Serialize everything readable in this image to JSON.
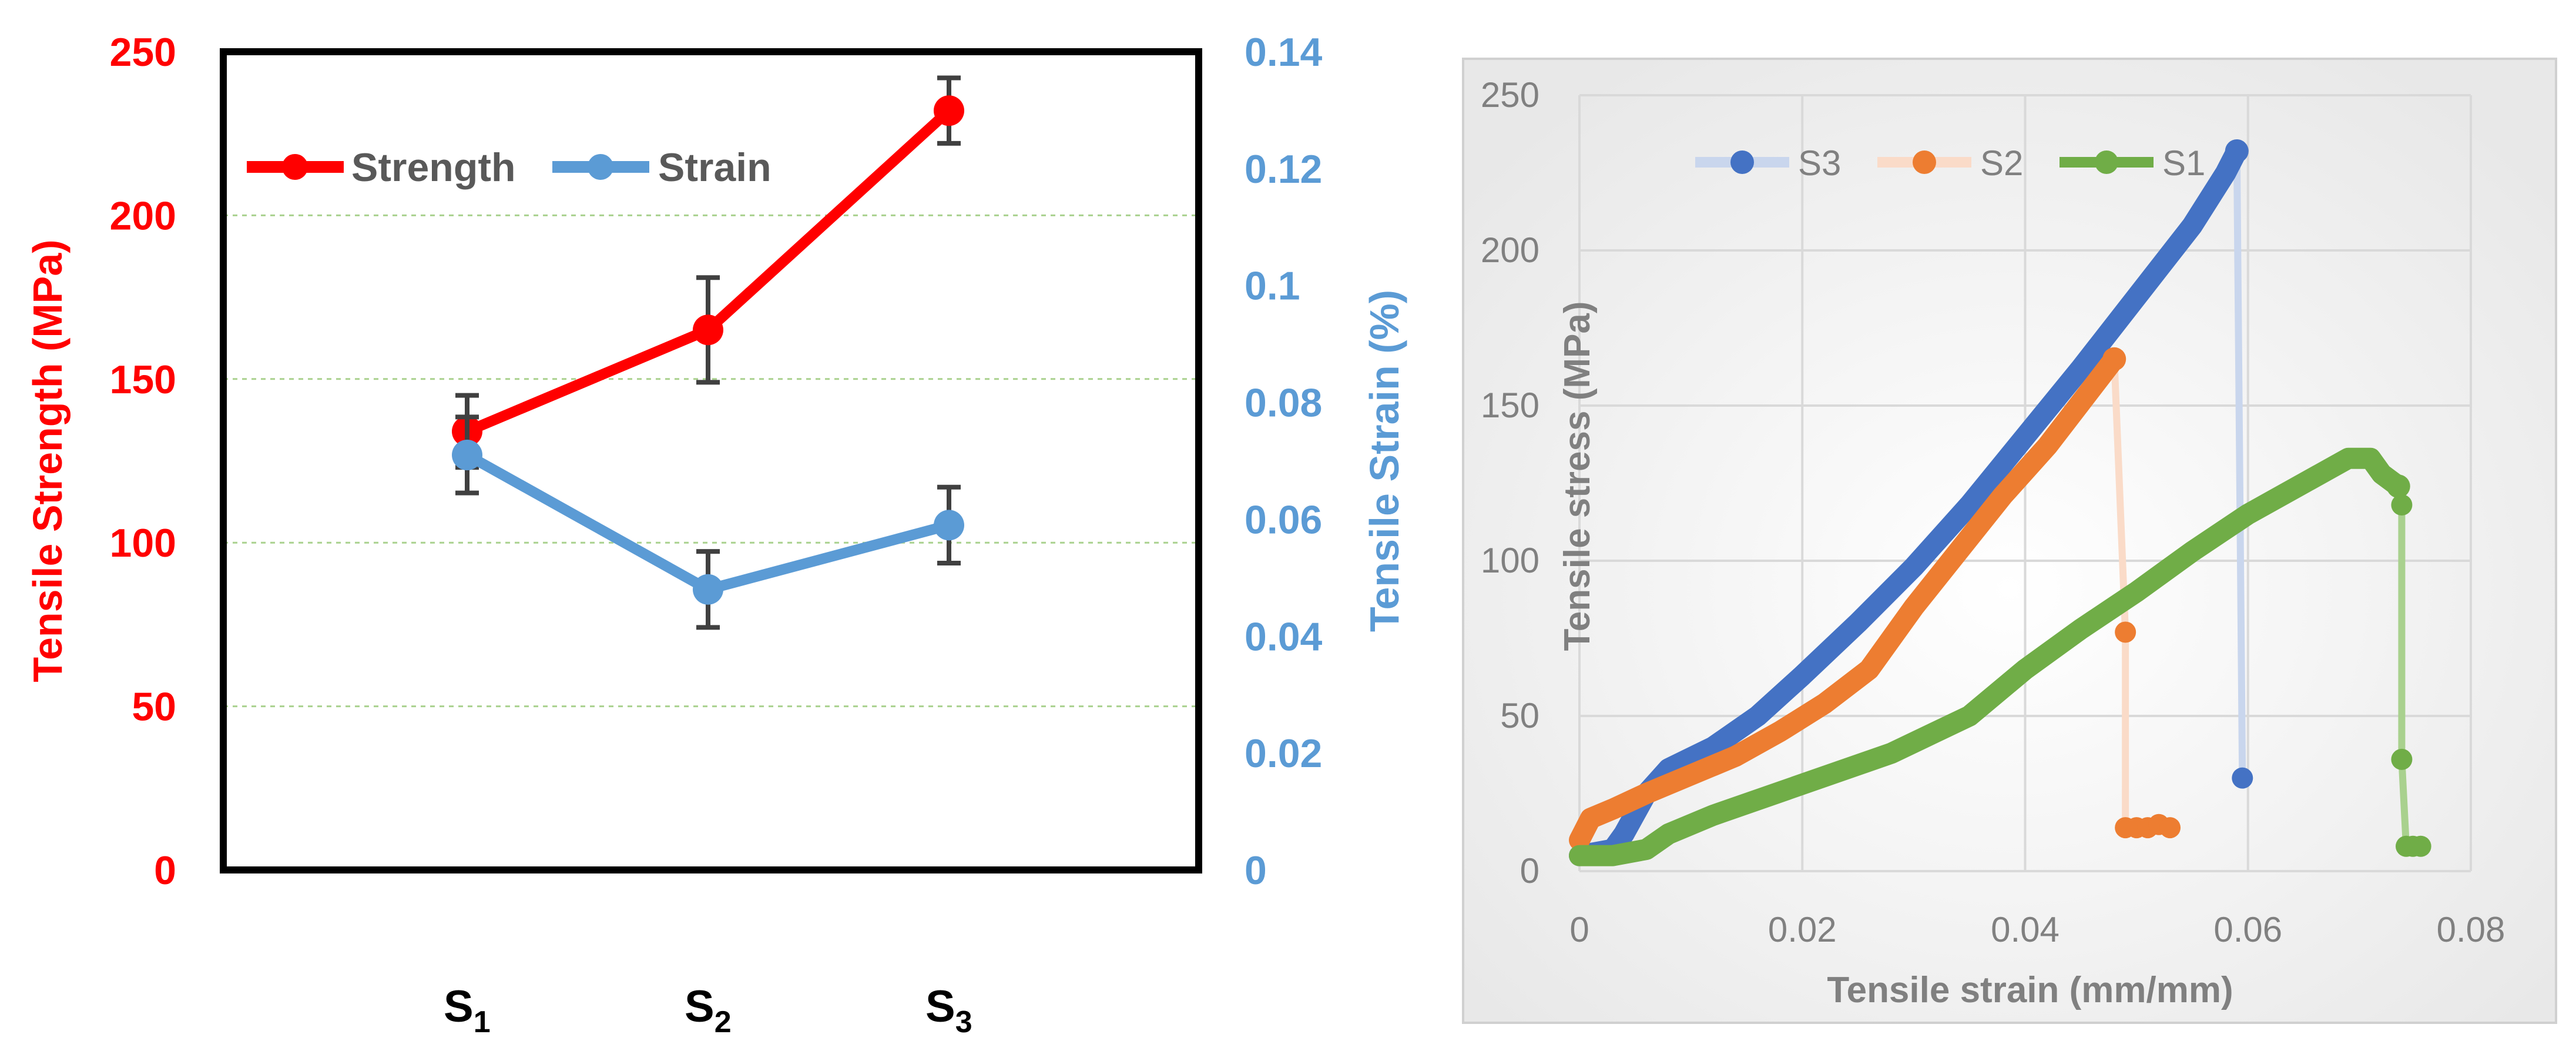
{
  "chart_data": [
    {
      "type": "line",
      "title": "",
      "categories": [
        "S1",
        "S2",
        "S3"
      ],
      "category_labels": [
        {
          "base": "S",
          "sub": "1"
        },
        {
          "base": "S",
          "sub": "2"
        },
        {
          "base": "S",
          "sub": "3"
        }
      ],
      "y_left": {
        "label": "Tensile Strength (MPa)",
        "range": [
          0,
          250
        ],
        "ticks": [
          "0",
          "50",
          "100",
          "150",
          "200",
          "250"
        ],
        "color": "#ff0000"
      },
      "y_right": {
        "label": "Tensile Strain (%)",
        "range": [
          0,
          0.14
        ],
        "ticks": [
          "0",
          "0.02",
          "0.04",
          "0.06",
          "0.08",
          "0.1",
          "0.12",
          "0.14"
        ],
        "color": "#5b9bd5"
      },
      "gridlines": "horizontal dashed",
      "legend_position": "top-left",
      "series": [
        {
          "name": "Strength",
          "axis": "left",
          "color": "#ff0000",
          "values": [
            134,
            165,
            232
          ],
          "error": [
            11,
            16,
            10
          ]
        },
        {
          "name": "Strain",
          "axis": "right",
          "color": "#5b9bd5",
          "values": [
            0.071,
            0.048,
            0.059
          ],
          "error": [
            0.0065,
            0.0065,
            0.0065
          ]
        }
      ]
    },
    {
      "type": "scatter",
      "title": "",
      "xlabel": "Tensile strain (mm/mm)",
      "ylabel": "Tensile stress (MPa)",
      "xlim": [
        0,
        0.08
      ],
      "ylim": [
        0,
        250
      ],
      "x_ticks": [
        "0",
        "0.02",
        "0.04",
        "0.06",
        "0.08"
      ],
      "y_ticks": [
        "0",
        "50",
        "100",
        "150",
        "200",
        "250"
      ],
      "grid": true,
      "legend_position": "top-center",
      "series": [
        {
          "name": "S3",
          "color": "#4472c4",
          "points": [
            [
              0.0,
              5
            ],
            [
              0.003,
              7
            ],
            [
              0.004,
              12
            ],
            [
              0.006,
              25
            ],
            [
              0.008,
              33
            ],
            [
              0.012,
              40
            ],
            [
              0.016,
              50
            ],
            [
              0.02,
              63
            ],
            [
              0.025,
              80
            ],
            [
              0.03,
              98
            ],
            [
              0.035,
              118
            ],
            [
              0.04,
              140
            ],
            [
              0.045,
              162
            ],
            [
              0.05,
              185
            ],
            [
              0.055,
              208
            ],
            [
              0.058,
              225
            ],
            [
              0.059,
              232
            ]
          ],
          "break_points": [
            [
              0.0595,
              30
            ]
          ]
        },
        {
          "name": "S2",
          "color": "#ed7d31",
          "points": [
            [
              0.0,
              10
            ],
            [
              0.001,
              17
            ],
            [
              0.003,
              20
            ],
            [
              0.006,
              25
            ],
            [
              0.01,
              31
            ],
            [
              0.014,
              37
            ],
            [
              0.018,
              45
            ],
            [
              0.022,
              54
            ],
            [
              0.026,
              65
            ],
            [
              0.03,
              85
            ],
            [
              0.034,
              103
            ],
            [
              0.038,
              121
            ],
            [
              0.042,
              137
            ],
            [
              0.045,
              151
            ],
            [
              0.048,
              165
            ]
          ],
          "break_points": [
            [
              0.049,
              77
            ],
            [
              0.049,
              14
            ],
            [
              0.05,
              14
            ],
            [
              0.051,
              14
            ],
            [
              0.052,
              15
            ],
            [
              0.053,
              14
            ]
          ]
        },
        {
          "name": "S1",
          "color": "#70ad47",
          "points": [
            [
              0.0,
              5
            ],
            [
              0.003,
              5
            ],
            [
              0.006,
              7
            ],
            [
              0.008,
              12
            ],
            [
              0.012,
              18
            ],
            [
              0.02,
              28
            ],
            [
              0.028,
              38
            ],
            [
              0.035,
              50
            ],
            [
              0.04,
              65
            ],
            [
              0.045,
              78
            ],
            [
              0.05,
              90
            ],
            [
              0.055,
              103
            ],
            [
              0.06,
              115
            ],
            [
              0.065,
              125
            ],
            [
              0.069,
              133
            ],
            [
              0.071,
              133
            ],
            [
              0.072,
              128
            ],
            [
              0.0735,
              124
            ]
          ],
          "break_points": [
            [
              0.0738,
              118
            ],
            [
              0.0738,
              36
            ],
            [
              0.0742,
              8
            ],
            [
              0.0748,
              8
            ],
            [
              0.0755,
              8
            ]
          ]
        }
      ]
    }
  ]
}
